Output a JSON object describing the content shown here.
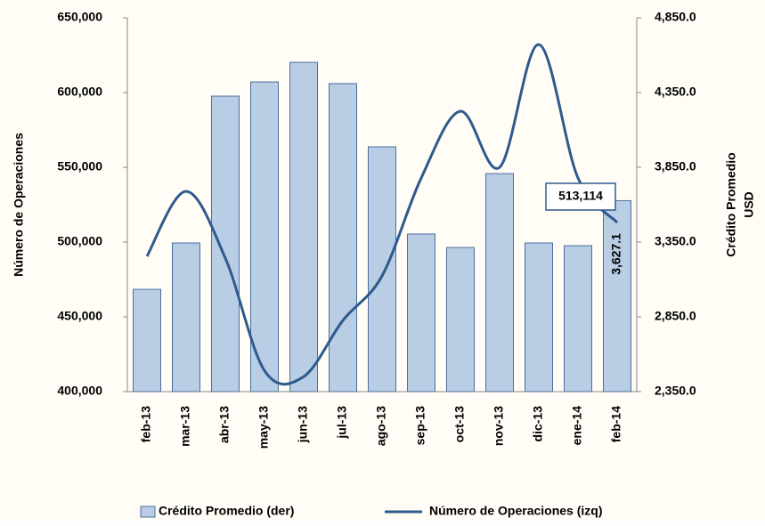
{
  "chart_data": {
    "type": "bar_line",
    "ylabel": "Número de Operaciones",
    "y2label": [
      "Crédito Promedio",
      "USD"
    ],
    "categories": [
      "feb-13",
      "mar-13",
      "abr-13",
      "may-13",
      "jun-13",
      "jul-13",
      "ago-13",
      "sep-13",
      "oct-13",
      "nov-13",
      "dic-13",
      "ene-14",
      "feb-14"
    ],
    "ylim": [
      400000,
      650000
    ],
    "yticks": [
      {
        "value": 400000,
        "label": "400,000"
      },
      {
        "value": 450000,
        "label": "450,000"
      },
      {
        "value": 500000,
        "label": "500,000"
      },
      {
        "value": 550000,
        "label": "550,000"
      },
      {
        "value": 600000,
        "label": "600,000"
      },
      {
        "value": 650000,
        "label": "650,000"
      }
    ],
    "y2lim": [
      2350,
      4850
    ],
    "y2ticks": [
      {
        "value": 2350,
        "label": "2,350.0"
      },
      {
        "value": 2850,
        "label": "2,850.0"
      },
      {
        "value": 3350,
        "label": "3,350.0"
      },
      {
        "value": 3850,
        "label": "3,850.0"
      },
      {
        "value": 4350,
        "label": "4,350.0"
      },
      {
        "value": 4850,
        "label": "4,850.0"
      }
    ],
    "series": [
      {
        "name": "Crédito Promedio (der)",
        "type": "bar",
        "axis": "y2",
        "color": "#b9cde5",
        "values": [
          3034,
          3344,
          4326,
          4421,
          4552,
          4410,
          3987,
          3404,
          3314,
          3808,
          3344,
          3326,
          3627.1
        ],
        "value_labels": [
          null,
          null,
          null,
          null,
          null,
          null,
          null,
          null,
          null,
          null,
          null,
          null,
          "3,627.1"
        ]
      },
      {
        "name": "Número de Operaciones (izq)",
        "type": "line",
        "axis": "y",
        "color": "#2e5a8c",
        "values": [
          490500,
          533900,
          489300,
          414000,
          410000,
          447600,
          477400,
          542900,
          587500,
          550000,
          632100,
          542900,
          513114
        ],
        "value_labels": [
          null,
          null,
          null,
          null,
          null,
          null,
          null,
          null,
          null,
          null,
          null,
          null,
          "513,114"
        ]
      }
    ]
  }
}
